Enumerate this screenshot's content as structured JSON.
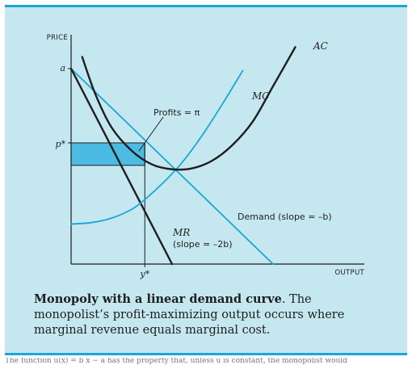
{
  "chart_data": {
    "type": "line",
    "title": "",
    "xlabel": "OUTPUT",
    "ylabel": "PRICE",
    "xlim": [
      0,
      10
    ],
    "ylim": [
      0,
      10
    ],
    "grid": false,
    "y_ticks": [
      {
        "label": "a",
        "value": 10
      },
      {
        "label": "p*",
        "value": 6.2
      }
    ],
    "x_ticks": [
      {
        "label": "y*",
        "value": 3.65
      }
    ],
    "series": [
      {
        "name": "Demand (slope = –b)",
        "color": "#1aa6d8",
        "x": [
          0,
          10
        ],
        "y": [
          10,
          0
        ]
      },
      {
        "name": "MR (slope = –2b)",
        "color": "#1e1e1e",
        "x": [
          0,
          5
        ],
        "y": [
          10,
          0
        ]
      },
      {
        "name": "MC",
        "color": "#1aa6d8",
        "x": [
          0,
          1,
          2,
          3,
          3.65,
          4.5,
          5.5,
          6.5,
          7.5,
          8.5
        ],
        "y": [
          2.05,
          2.12,
          2.35,
          2.8,
          3.3,
          4.1,
          5.2,
          6.6,
          8.2,
          9.9
        ]
      },
      {
        "name": "AC",
        "color": "#1e1e1e",
        "x": [
          0.55,
          1.2,
          2.0,
          3.0,
          4.0,
          5.0,
          6.0,
          7.0,
          8.0,
          9.0,
          10.0,
          11.1
        ],
        "y": [
          10.6,
          8.7,
          7.0,
          5.8,
          5.1,
          4.85,
          4.9,
          5.3,
          6.1,
          7.3,
          9.1,
          11.1
        ]
      }
    ],
    "annotations": [
      {
        "text": "Profits = π",
        "x": 3.65,
        "y": 5.2
      },
      {
        "text": "AC"
      },
      {
        "text": "MC"
      },
      {
        "text": "MR"
      },
      {
        "text": "(slope = –2b)"
      },
      {
        "text": "Demand (slope = –b)"
      }
    ],
    "profit_rect": {
      "x0": 0,
      "x1": 3.65,
      "y0": 5.05,
      "y1": 6.2,
      "color": "#4bbbe3"
    }
  },
  "caption": {
    "title": "Monopoly with a linear demand curve",
    "body": ". The monopolist’s profit-maximizing output occurs where marginal revenue equals marginal cost."
  },
  "bottom_text": "The function u(x) = b x − a has the property that, unless u is constant, the monopolist would"
}
